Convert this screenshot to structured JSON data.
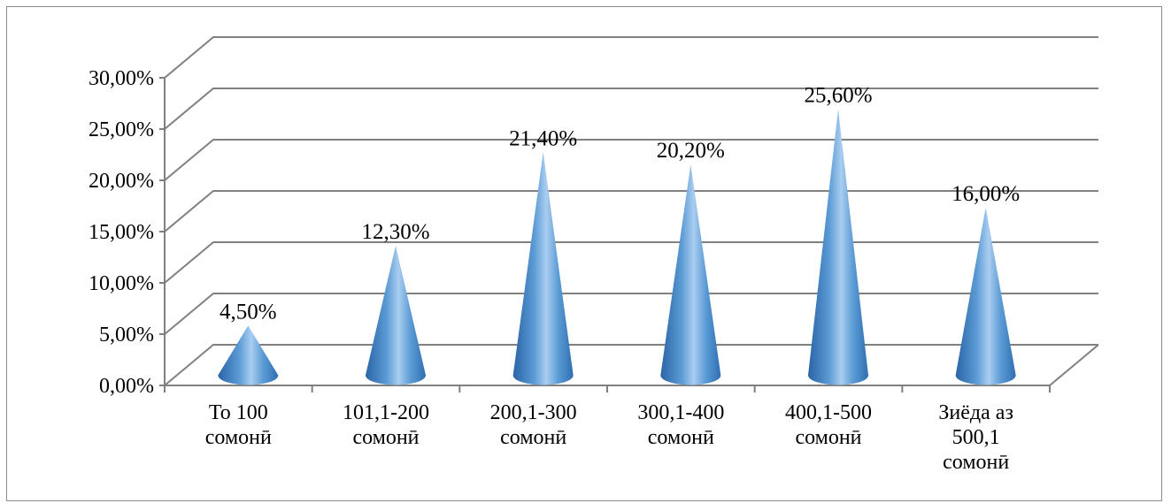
{
  "chart_data": {
    "type": "bar",
    "style": "3d-cone",
    "categories": [
      [
        "То 100",
        "сомонӣ"
      ],
      [
        "101,1-200",
        "сомонӣ"
      ],
      [
        "200,1-300",
        "сомонӣ"
      ],
      [
        "300,1-400",
        "сомонӣ"
      ],
      [
        "400,1-500",
        "сомонӣ"
      ],
      [
        "Зиёда аз",
        "500,1",
        "сомонӣ"
      ]
    ],
    "values": [
      4.5,
      12.3,
      21.4,
      20.2,
      25.6,
      16.0
    ],
    "data_labels": [
      "4,50%",
      "12,30%",
      "21,40%",
      "20,20%",
      "25,60%",
      "16,00%"
    ],
    "y_ticks": [
      "0,00%",
      "5,00%",
      "10,00%",
      "15,00%",
      "20,00%",
      "25,00%",
      "30,00%"
    ],
    "ylim": [
      0,
      30
    ],
    "grid": true,
    "legend": "none",
    "title": "",
    "xlabel": "",
    "ylabel": "",
    "colors": {
      "cone_dark": "#2f6fb2",
      "cone_mid": "#5b9bd5",
      "cone_light": "#a9cdf0",
      "gridline": "#808080",
      "axis": "#808080"
    }
  }
}
